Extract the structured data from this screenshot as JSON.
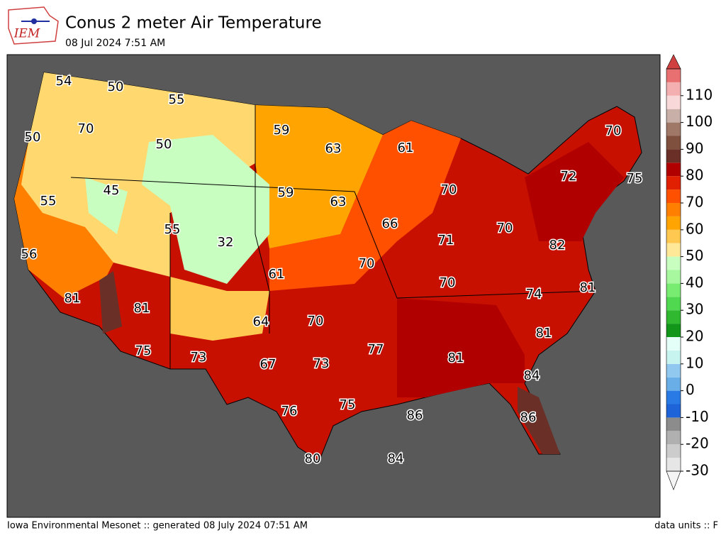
{
  "header": {
    "logo": "IEM",
    "title": "Conus 2 meter Air Temperature",
    "subtitle": "08 Jul 2024 7:51 AM"
  },
  "map": {
    "labels": [
      54,
      50,
      55,
      70,
      50,
      50,
      59,
      63,
      61,
      70,
      72,
      75,
      45,
      55,
      59,
      63,
      70,
      66,
      55,
      32,
      71,
      70,
      82,
      56,
      61,
      70,
      70,
      74,
      81,
      81,
      81,
      64,
      70,
      77,
      81,
      81,
      75,
      73,
      67,
      73,
      84,
      76,
      75,
      86,
      86,
      80,
      84
    ]
  },
  "colorbar": {
    "lim": [
      -30,
      120
    ],
    "levels": [
      -30,
      -25,
      -20,
      -15,
      -10,
      -5,
      0,
      5,
      10,
      15,
      20,
      25,
      30,
      35,
      40,
      45,
      50,
      55,
      60,
      65,
      70,
      75,
      80,
      85,
      90,
      95,
      100,
      105,
      110,
      115,
      120
    ],
    "colors": [
      "#e6e6e6",
      "#cccccc",
      "#b0b0b0",
      "#8c8c8c",
      "#1e64d8",
      "#2a7ae6",
      "#6aaee8",
      "#90c8f0",
      "#c8f4f0",
      "#e4fff8",
      "#12961a",
      "#30b830",
      "#50d850",
      "#78ec70",
      "#a8f8a0",
      "#c8ffc0",
      "#ffe898",
      "#ffc850",
      "#ffa400",
      "#ff8000",
      "#ff5000",
      "#e02000",
      "#b00000",
      "#6a3028",
      "#80503e",
      "#a07868",
      "#c8b0a8",
      "#f8d8d8",
      "#f4b0b0",
      "#e87070"
    ],
    "ticks": [
      -30,
      -20,
      -10,
      0,
      10,
      20,
      30,
      40,
      50,
      60,
      70,
      80,
      90,
      100,
      110
    ]
  },
  "footer": {
    "left": "Iowa Environmental Mesonet :: generated 08 July 2024 07:51 AM",
    "right": "data units :: F"
  }
}
